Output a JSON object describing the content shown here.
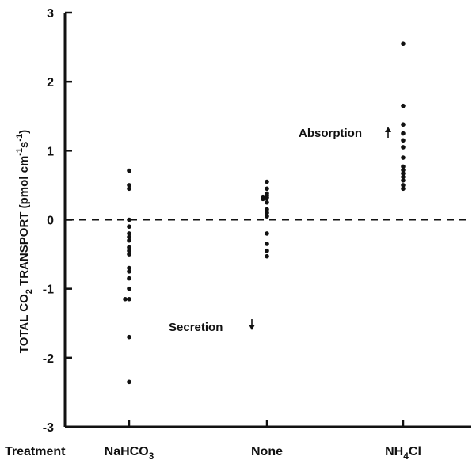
{
  "chart_data": {
    "type": "scatter",
    "title": "",
    "ylabel_parts": {
      "main": "TOTAL CO",
      "sub": "2",
      "rest": " TRANSPORT (pmol cm",
      "sup1": "-1",
      "mid": "s",
      "sup2": "-1",
      "end": ")"
    },
    "xlabel": "Treatment",
    "ylim": [
      -3,
      3
    ],
    "yticks": [
      3,
      2,
      1,
      0,
      -1,
      -2,
      -3
    ],
    "ytick_labels": [
      "3",
      "2",
      "1",
      "0",
      "-1",
      "-2",
      "-3"
    ],
    "zero_line": "dashed",
    "categories": [
      {
        "label": "NaHCO",
        "sub": "3",
        "tail": ""
      },
      {
        "label": "None",
        "sub": "",
        "tail": ""
      },
      {
        "label": "NH",
        "sub": "4",
        "tail": "Cl"
      }
    ],
    "series": [
      {
        "category": 0,
        "values": [
          0.71,
          0.5,
          0.45,
          0.0,
          -0.1,
          -0.2,
          -0.25,
          -0.3,
          -0.4,
          -0.45,
          -0.5,
          -0.7,
          -0.75,
          -0.85,
          -1.0,
          -1.15,
          -1.15,
          -1.7,
          -2.35
        ]
      },
      {
        "category": 1,
        "values": [
          0.55,
          0.45,
          0.38,
          0.35,
          0.33,
          0.32,
          0.3,
          0.25,
          0.15,
          0.1,
          0.05,
          -0.2,
          -0.35,
          -0.45,
          -0.53
        ]
      },
      {
        "category": 2,
        "values": [
          2.55,
          1.65,
          1.38,
          1.25,
          1.15,
          1.05,
          0.9,
          0.77,
          0.72,
          0.67,
          0.62,
          0.57,
          0.5,
          0.45
        ]
      }
    ],
    "annotations": [
      {
        "text": "Absorption",
        "arrow": "up"
      },
      {
        "text": "Secretion",
        "arrow": "down"
      }
    ]
  }
}
